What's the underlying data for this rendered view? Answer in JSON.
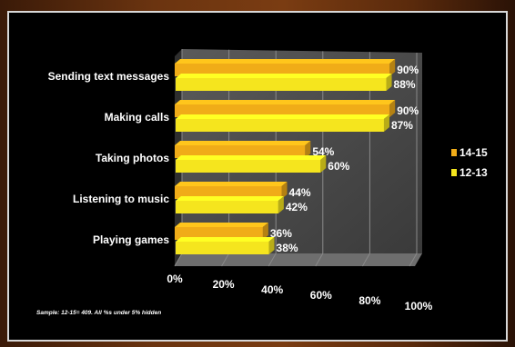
{
  "chart_data": {
    "type": "bar",
    "orientation": "horizontal",
    "categories": [
      "Sending text messages",
      "Making calls",
      "Taking photos",
      "Listening to music",
      "Playing games"
    ],
    "series": [
      {
        "name": "14-15",
        "values": [
          90,
          90,
          54,
          44,
          36
        ],
        "labels": [
          "90%",
          "90%",
          "54%",
          "44%",
          "36%"
        ],
        "color": "#f0ac18"
      },
      {
        "name": "12-13",
        "values": [
          88,
          87,
          60,
          42,
          38
        ],
        "labels": [
          "88%",
          "87%",
          "60%",
          "42%",
          "38%"
        ],
        "color": "#f5e51e"
      }
    ],
    "x_ticks": [
      "0%",
      "20%",
      "40%",
      "60%",
      "80%",
      "100%"
    ],
    "xlim": [
      0,
      100
    ],
    "grid": true,
    "legend_position": "right",
    "footnote": "Sample: 12-15= 409.  All %s under 5% hidden",
    "colors": {
      "background": "#000000",
      "wall": "#505050",
      "floor": "#6e6e6e",
      "grid": "#8a8a8a"
    }
  }
}
